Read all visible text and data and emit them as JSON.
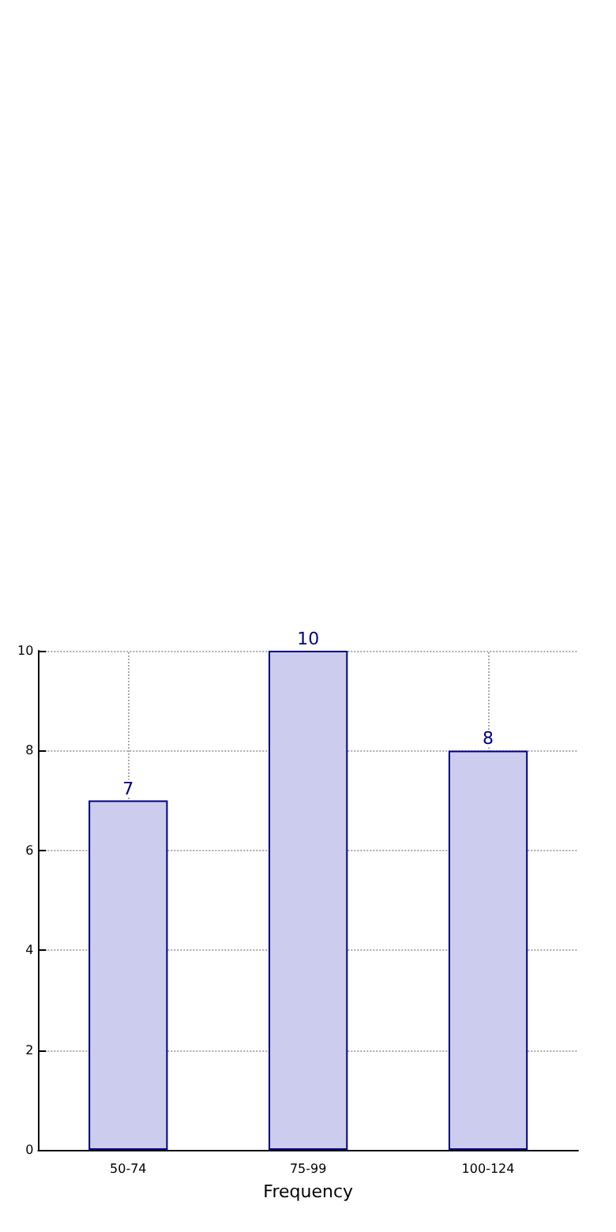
{
  "chart_data": {
    "type": "bar",
    "xlabel": "Frequency",
    "categories": [
      "50-74",
      "75-99",
      "100-124"
    ],
    "values": [
      7,
      10,
      8
    ],
    "color": "#ccccee",
    "ylim": [
      0,
      10
    ],
    "yticks": [
      0,
      2,
      4,
      6,
      8,
      10
    ],
    "grid": true,
    "data_labels": true
  }
}
